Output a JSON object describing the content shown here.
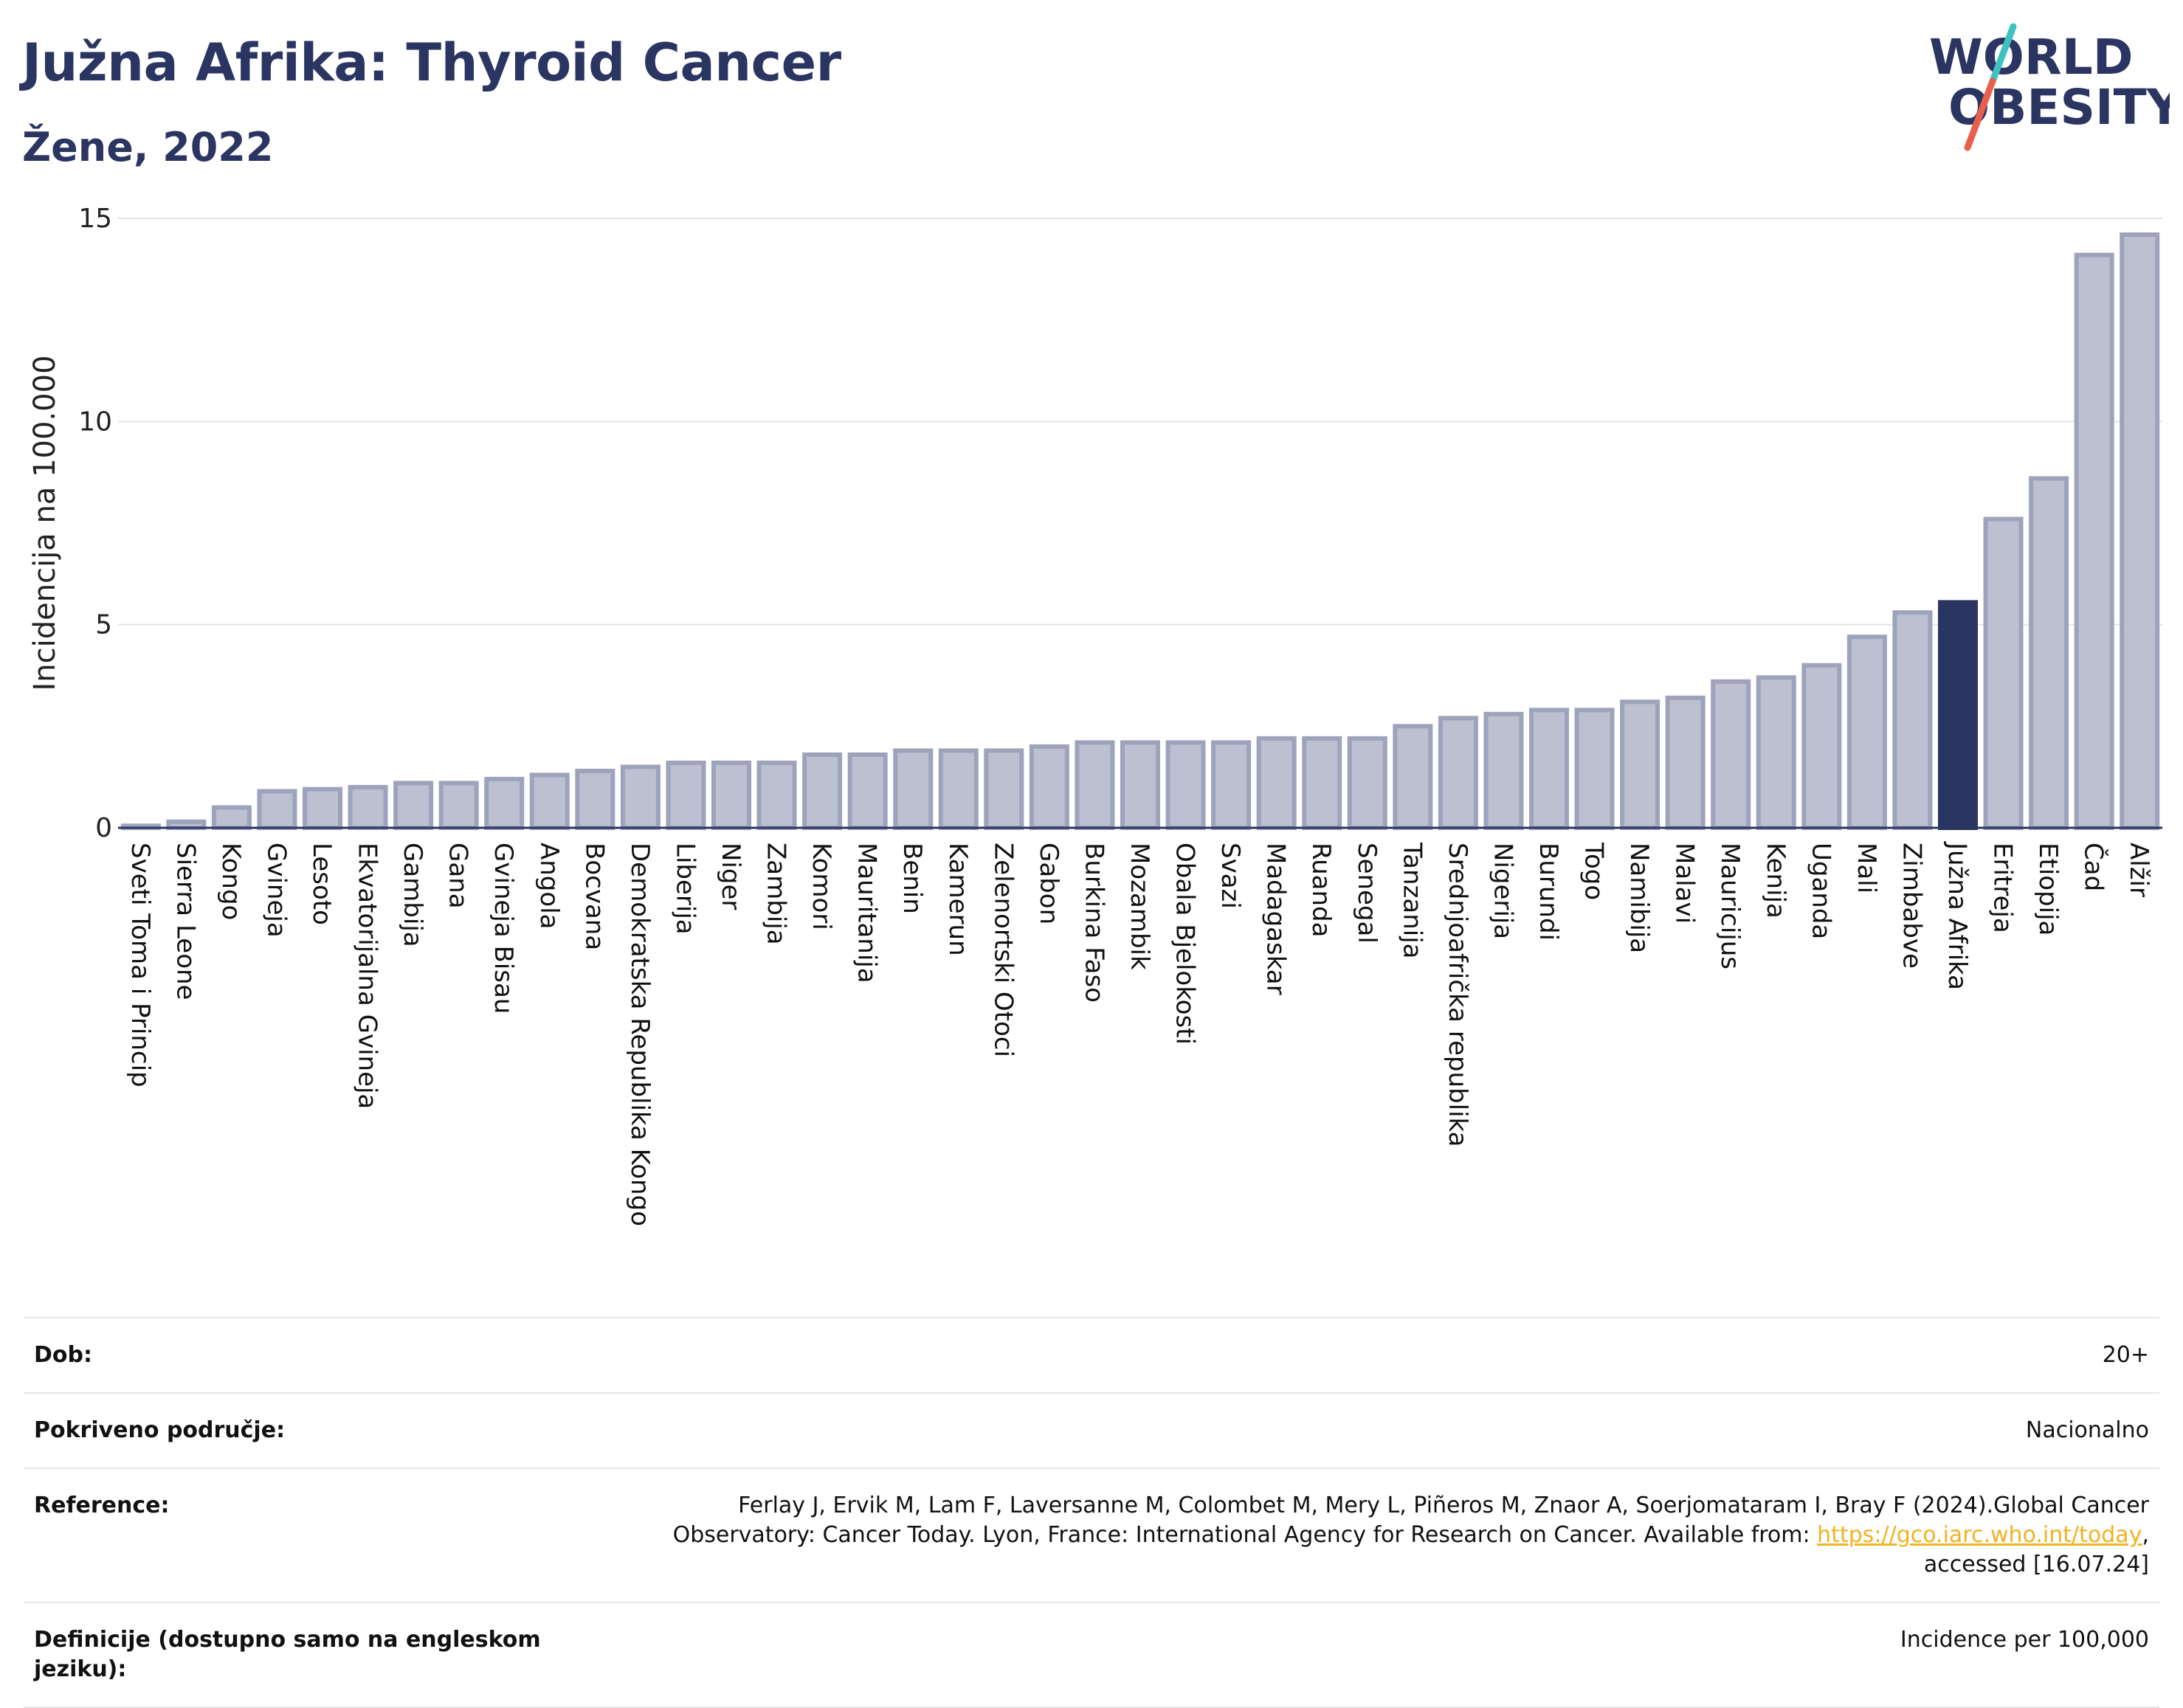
{
  "header": {
    "title": "Južna Afrika: Thyroid Cancer",
    "subtitle": "Žene, 2022",
    "logo_line1": "WORLD",
    "logo_line2": "OBESITY"
  },
  "colors": {
    "bar_default": "#bcc0d0",
    "bar_default_border": "#9da3bb",
    "bar_highlight": "#2b3561",
    "title": "#2b3561",
    "logo_teal": "#3fc1c0",
    "logo_red": "#e8604c"
  },
  "chart_data": {
    "type": "bar",
    "ylabel": "Incidencija na 100.000",
    "ylim": [
      0,
      15
    ],
    "yticks": [
      0,
      5,
      10,
      15
    ],
    "grid": true,
    "highlight": "Južna Afrika",
    "categories": [
      "Sveti Toma i Princip",
      "Sierra Leone",
      "Kongo",
      "Gvineja",
      "Lesoto",
      "Ekvatorijalna Gvineja",
      "Gambija",
      "Gana",
      "Gvineja Bisau",
      "Angola",
      "Bocvana",
      "Demokratska Republika Kongo",
      "Liberija",
      "Niger",
      "Zambija",
      "Komori",
      "Mauritanija",
      "Benin",
      "Kamerun",
      "Zelenortski Otoci",
      "Gabon",
      "Burkina Faso",
      "Mozambik",
      "Obala Bjelokosti",
      "Svazi",
      "Madagaskar",
      "Ruanda",
      "Senegal",
      "Tanzanija",
      "Srednjoafrička republika",
      "Nigerija",
      "Burundi",
      "Togo",
      "Namibija",
      "Malavi",
      "Mauricijus",
      "Kenija",
      "Uganda",
      "Mali",
      "Zimbabve",
      "Južna Afrika",
      "Eritreja",
      "Etiopija",
      "Čad",
      "Alžir"
    ],
    "values": [
      0.05,
      0.15,
      0.5,
      0.9,
      0.95,
      1.0,
      1.1,
      1.1,
      1.2,
      1.3,
      1.4,
      1.5,
      1.6,
      1.6,
      1.6,
      1.8,
      1.8,
      1.9,
      1.9,
      1.9,
      2.0,
      2.1,
      2.1,
      2.1,
      2.1,
      2.2,
      2.2,
      2.2,
      2.5,
      2.7,
      2.8,
      2.9,
      2.9,
      3.1,
      3.2,
      3.6,
      3.7,
      4.0,
      4.7,
      5.3,
      5.55,
      7.6,
      8.6,
      14.1,
      14.6
    ]
  },
  "meta": {
    "age_label": "Dob:",
    "age_value": "20+",
    "coverage_label": "Pokriveno područje:",
    "coverage_value": "Nacionalno",
    "reference_label": "Reference:",
    "reference_text_1": "Ferlay J, Ervik M, Lam F, Laversanne M, Colombet M, Mery L, Piñeros M, Znaor A, Soerjomataram I, Bray F (2024).Global Cancer Observatory: Cancer Today. Lyon, France: International Agency for Research on Cancer. Available from: ",
    "reference_link": "https://gco.iarc.who.int/today",
    "reference_text_2": ", accessed [16.07.24]",
    "definitions_label": "Definicije (dostupno samo na engleskom jeziku):",
    "definitions_value": "Incidence per 100,000"
  }
}
